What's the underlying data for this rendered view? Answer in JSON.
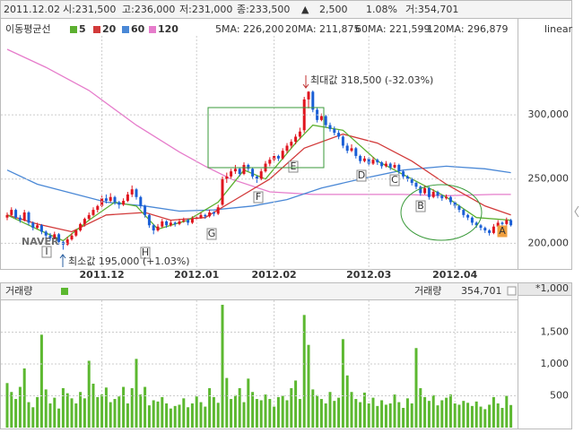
{
  "info": [
    "2011.12.02",
    "시:231,500",
    "고:236,000",
    "저:231,000",
    "종:233,500",
    "▲",
    "2,500",
    "1.08%",
    "거:354,701"
  ],
  "chart_data": [
    {
      "type": "candlestick",
      "legend_title": "이동평균선",
      "scale": "linear",
      "categories": [
        null,
        null,
        null,
        null,
        null,
        null,
        null,
        null,
        null,
        null,
        null,
        null,
        null,
        null,
        null,
        null,
        null,
        null,
        null,
        null,
        null,
        null,
        "2011.12",
        null,
        null,
        null,
        null,
        null,
        null,
        null,
        null,
        null,
        null,
        null,
        null,
        null,
        null,
        null,
        null,
        null,
        null,
        null,
        null,
        null,
        "2012.01",
        null,
        null,
        null,
        null,
        null,
        null,
        null,
        null,
        null,
        null,
        null,
        null,
        null,
        null,
        null,
        null,
        null,
        "2012.02",
        null,
        null,
        null,
        null,
        null,
        null,
        null,
        null,
        null,
        null,
        null,
        null,
        null,
        null,
        null,
        null,
        null,
        null,
        null,
        null,
        null,
        "2012.03",
        null,
        null,
        null,
        null,
        null,
        null,
        null,
        null,
        null,
        null,
        null,
        null,
        null,
        null,
        null,
        null,
        null,
        null,
        null,
        "2012.04",
        null,
        null,
        null,
        null,
        null,
        null,
        null,
        null,
        null,
        null,
        null,
        null,
        null
      ],
      "ohlc": [
        [
          220000,
          224000,
          218000,
          222000
        ],
        [
          222000,
          228000,
          221000,
          226000
        ],
        [
          226000,
          227000,
          219000,
          220000
        ],
        [
          220000,
          222000,
          216000,
          218000
        ],
        [
          218000,
          226000,
          217000,
          224000
        ],
        [
          224000,
          225000,
          214000,
          216000
        ],
        [
          216000,
          217000,
          210000,
          212000
        ],
        [
          212000,
          216000,
          211000,
          214000
        ],
        [
          214000,
          215000,
          207000,
          209000
        ],
        [
          209000,
          210000,
          204000,
          206000
        ],
        [
          206000,
          208000,
          202000,
          204000
        ],
        [
          204000,
          209000,
          203000,
          207000
        ],
        [
          207000,
          208000,
          199000,
          201000
        ],
        [
          201000,
          202000,
          195000,
          199000
        ],
        [
          199000,
          205000,
          198000,
          203000
        ],
        [
          203000,
          208000,
          202000,
          206000
        ],
        [
          206000,
          211000,
          205000,
          210000
        ],
        [
          210000,
          216000,
          209000,
          215000
        ],
        [
          215000,
          220000,
          213000,
          219000
        ],
        [
          219000,
          224000,
          218000,
          222000
        ],
        [
          222000,
          228000,
          221000,
          226000
        ],
        [
          226000,
          230000,
          224000,
          229000
        ],
        [
          229000,
          237000,
          228000,
          235000
        ],
        [
          235000,
          238000,
          231000,
          233000
        ],
        [
          233000,
          239000,
          232000,
          236000
        ],
        [
          236000,
          237000,
          230000,
          232000
        ],
        [
          232000,
          233000,
          227000,
          230000
        ],
        [
          230000,
          235000,
          229000,
          233000
        ],
        [
          233000,
          240000,
          232000,
          238000
        ],
        [
          238000,
          245000,
          236000,
          242000
        ],
        [
          242000,
          243000,
          234000,
          236000
        ],
        [
          236000,
          237000,
          227000,
          229000
        ],
        [
          229000,
          230000,
          220000,
          222000
        ],
        [
          222000,
          223000,
          212000,
          214000
        ],
        [
          214000,
          215000,
          207000,
          210000
        ],
        [
          210000,
          215000,
          209000,
          213000
        ],
        [
          213000,
          219000,
          212000,
          217000
        ],
        [
          217000,
          218000,
          212000,
          214000
        ],
        [
          214000,
          218000,
          213000,
          216000
        ],
        [
          216000,
          217000,
          213000,
          215000
        ],
        [
          215000,
          219000,
          214000,
          217000
        ],
        [
          217000,
          220000,
          216000,
          218000
        ],
        [
          218000,
          219000,
          214000,
          216000
        ],
        [
          216000,
          221000,
          215000,
          219000
        ],
        [
          219000,
          222000,
          218000,
          220000
        ],
        [
          220000,
          224000,
          219000,
          222000
        ],
        [
          222000,
          223000,
          219000,
          221000
        ],
        [
          221000,
          226000,
          220000,
          224000
        ],
        [
          224000,
          225000,
          221000,
          223000
        ],
        [
          223000,
          230000,
          222000,
          228000
        ],
        [
          230000,
          252000,
          229000,
          250000
        ],
        [
          250000,
          255000,
          247000,
          252000
        ],
        [
          252000,
          258000,
          250000,
          256000
        ],
        [
          256000,
          261000,
          254000,
          258000
        ],
        [
          258000,
          259000,
          252000,
          254000
        ],
        [
          254000,
          263000,
          253000,
          261000
        ],
        [
          261000,
          262000,
          256000,
          258000
        ],
        [
          258000,
          259000,
          250000,
          252000
        ],
        [
          252000,
          253000,
          247000,
          250000
        ],
        [
          250000,
          258000,
          249000,
          256000
        ],
        [
          256000,
          264000,
          255000,
          262000
        ],
        [
          262000,
          267000,
          260000,
          265000
        ],
        [
          265000,
          270000,
          264000,
          268000
        ],
        [
          268000,
          269000,
          264000,
          266000
        ],
        [
          266000,
          274000,
          265000,
          272000
        ],
        [
          272000,
          278000,
          270000,
          276000
        ],
        [
          276000,
          281000,
          274000,
          279000
        ],
        [
          279000,
          285000,
          277000,
          283000
        ],
        [
          283000,
          290000,
          281000,
          287000
        ],
        [
          288000,
          314000,
          286000,
          312000
        ],
        [
          312000,
          318500,
          305000,
          318000
        ],
        [
          318000,
          319000,
          302000,
          304000
        ],
        [
          304000,
          306000,
          294000,
          296000
        ],
        [
          296000,
          301000,
          295000,
          299000
        ],
        [
          299000,
          300000,
          290000,
          292000
        ],
        [
          292000,
          294000,
          287000,
          289000
        ],
        [
          289000,
          291000,
          284000,
          286000
        ],
        [
          286000,
          288000,
          281000,
          283000
        ],
        [
          283000,
          284000,
          274000,
          276000
        ],
        [
          276000,
          278000,
          270000,
          272000
        ],
        [
          272000,
          277000,
          271000,
          274000
        ],
        [
          274000,
          275000,
          266000,
          268000
        ],
        [
          268000,
          269000,
          262000,
          264000
        ],
        [
          264000,
          268000,
          263000,
          266000
        ],
        [
          266000,
          267000,
          260000,
          262000
        ],
        [
          262000,
          267000,
          261000,
          265000
        ],
        [
          265000,
          266000,
          261000,
          263000
        ],
        [
          263000,
          264000,
          258000,
          260000
        ],
        [
          260000,
          264000,
          259000,
          262000
        ],
        [
          262000,
          263000,
          257000,
          259000
        ],
        [
          259000,
          263000,
          258000,
          261000
        ],
        [
          261000,
          262000,
          254000,
          256000
        ],
        [
          256000,
          257000,
          250000,
          252000
        ],
        [
          252000,
          253000,
          248000,
          250000
        ],
        [
          250000,
          251000,
          245000,
          247000
        ],
        [
          247000,
          248000,
          242000,
          244000
        ],
        [
          244000,
          245000,
          237000,
          239000
        ],
        [
          239000,
          245000,
          238000,
          243000
        ],
        [
          243000,
          244000,
          234000,
          236000
        ],
        [
          236000,
          242000,
          235000,
          240000
        ],
        [
          240000,
          241000,
          235000,
          237000
        ],
        [
          237000,
          238000,
          233000,
          235000
        ],
        [
          235000,
          238000,
          234000,
          236000
        ],
        [
          236000,
          237000,
          230000,
          232000
        ],
        [
          232000,
          233000,
          227000,
          229000
        ],
        [
          229000,
          230000,
          224000,
          226000
        ],
        [
          226000,
          227000,
          220000,
          222000
        ],
        [
          222000,
          223000,
          218000,
          220000
        ],
        [
          220000,
          221000,
          214000,
          216000
        ],
        [
          216000,
          217000,
          212000,
          214000
        ],
        [
          214000,
          215000,
          210000,
          212000
        ],
        [
          212000,
          213000,
          208000,
          210000
        ],
        [
          210000,
          211000,
          206000,
          208000
        ],
        [
          208000,
          215000,
          207000,
          213000
        ],
        [
          213000,
          218000,
          212000,
          216000
        ],
        [
          216000,
          217000,
          213000,
          215000
        ],
        [
          215000,
          220000,
          214000,
          218000
        ],
        [
          218000,
          219000,
          213000,
          214000
        ]
      ],
      "up_color": "#e0141e",
      "down_color": "#1a5fd6",
      "series": [
        {
          "name": "5",
          "color": "#5cb030",
          "readout": "5MA: 226,200",
          "x": [
            0,
            7,
            13,
            19,
            25,
            30,
            35,
            42,
            49,
            55,
            60,
            67,
            71,
            78,
            86,
            94,
            102,
            109,
            117
          ],
          "values": [
            222000,
            211000,
            202000,
            218000,
            232000,
            229000,
            211000,
            218000,
            232000,
            257000,
            250000,
            278000,
            292000,
            288000,
            264000,
            250000,
            236000,
            220000,
            218000
          ]
        },
        {
          "name": "20",
          "color": "#d23a3a",
          "readout": "20MA: 211,875",
          "x": [
            0,
            7,
            15,
            23,
            32,
            38,
            46,
            52,
            61,
            69,
            78,
            86,
            94,
            102,
            111,
            117
          ],
          "values": [
            222000,
            215000,
            209000,
            222000,
            224000,
            218000,
            220000,
            232000,
            250000,
            274000,
            285000,
            278000,
            264000,
            246000,
            229000,
            222000
          ]
        },
        {
          "name": "60",
          "color": "#4a88d6",
          "readout": "60MA: 221,599",
          "x": [
            0,
            7,
            15,
            23,
            32,
            40,
            48,
            57,
            65,
            73,
            82,
            92,
            102,
            111,
            117
          ],
          "values": [
            257000,
            246000,
            239000,
            232000,
            229000,
            225000,
            226000,
            229000,
            234000,
            243000,
            250000,
            257000,
            260000,
            258000,
            255000
          ]
        },
        {
          "name": "120",
          "color": "#e67ccb",
          "readout": "120MA: 296,879",
          "x": [
            0,
            9,
            19,
            30,
            40,
            46,
            52,
            61,
            71,
            82,
            92,
            102,
            113,
            117
          ],
          "values": [
            351000,
            337000,
            319000,
            292000,
            271000,
            260000,
            250000,
            240000,
            238000,
            238000,
            238000,
            237000,
            238000,
            238000
          ]
        }
      ],
      "ylim": [
        180000,
        361500
      ],
      "yticks": [
        {
          "value": 200000,
          "label": "200,000"
        },
        {
          "value": 250000,
          "label": "250,000"
        },
        {
          "value": 300000,
          "label": "300,000"
        }
      ],
      "grid": true,
      "annotations": [
        "I",
        "H",
        "G",
        "F",
        "E",
        "D",
        "C",
        "B",
        "A",
        "최대값 318,500 (-32.03%)",
        "최소값 195,000 (+1.03%)"
      ],
      "watermark": "NAVER"
    },
    {
      "type": "bar",
      "title": "거래량",
      "color": "#5cb830",
      "unit_label": "*1,000",
      "readout_label": "거래량",
      "readout": "354,701",
      "values": [
        700,
        560,
        450,
        640,
        930,
        400,
        320,
        480,
        1460,
        600,
        380,
        470,
        300,
        620,
        540,
        460,
        380,
        560,
        460,
        1050,
        690,
        480,
        520,
        630,
        400,
        450,
        490,
        640,
        380,
        620,
        1080,
        520,
        640,
        350,
        430,
        410,
        480,
        380,
        300,
        340,
        360,
        460,
        320,
        380,
        490,
        400,
        330,
        620,
        480,
        390,
        1930,
        780,
        450,
        510,
        620,
        400,
        770,
        560,
        450,
        430,
        520,
        450,
        330,
        480,
        500,
        430,
        620,
        740,
        450,
        1770,
        1300,
        600,
        510,
        450,
        380,
        560,
        420,
        470,
        1390,
        820,
        560,
        450,
        400,
        550,
        380,
        470,
        340,
        430,
        360,
        380,
        520,
        400,
        310,
        460,
        380,
        1250,
        620,
        480,
        420,
        510,
        350,
        430,
        470,
        520,
        380,
        360,
        420,
        390,
        340,
        410,
        330,
        290,
        360,
        480,
        380,
        310,
        500,
        355
      ],
      "ylim": [
        0,
        2000
      ],
      "yticks": [
        500,
        {
          "value": 1000,
          "label": "1,000"
        },
        {
          "value": 1500,
          "label": "1,500"
        }
      ],
      "grid": true
    }
  ]
}
